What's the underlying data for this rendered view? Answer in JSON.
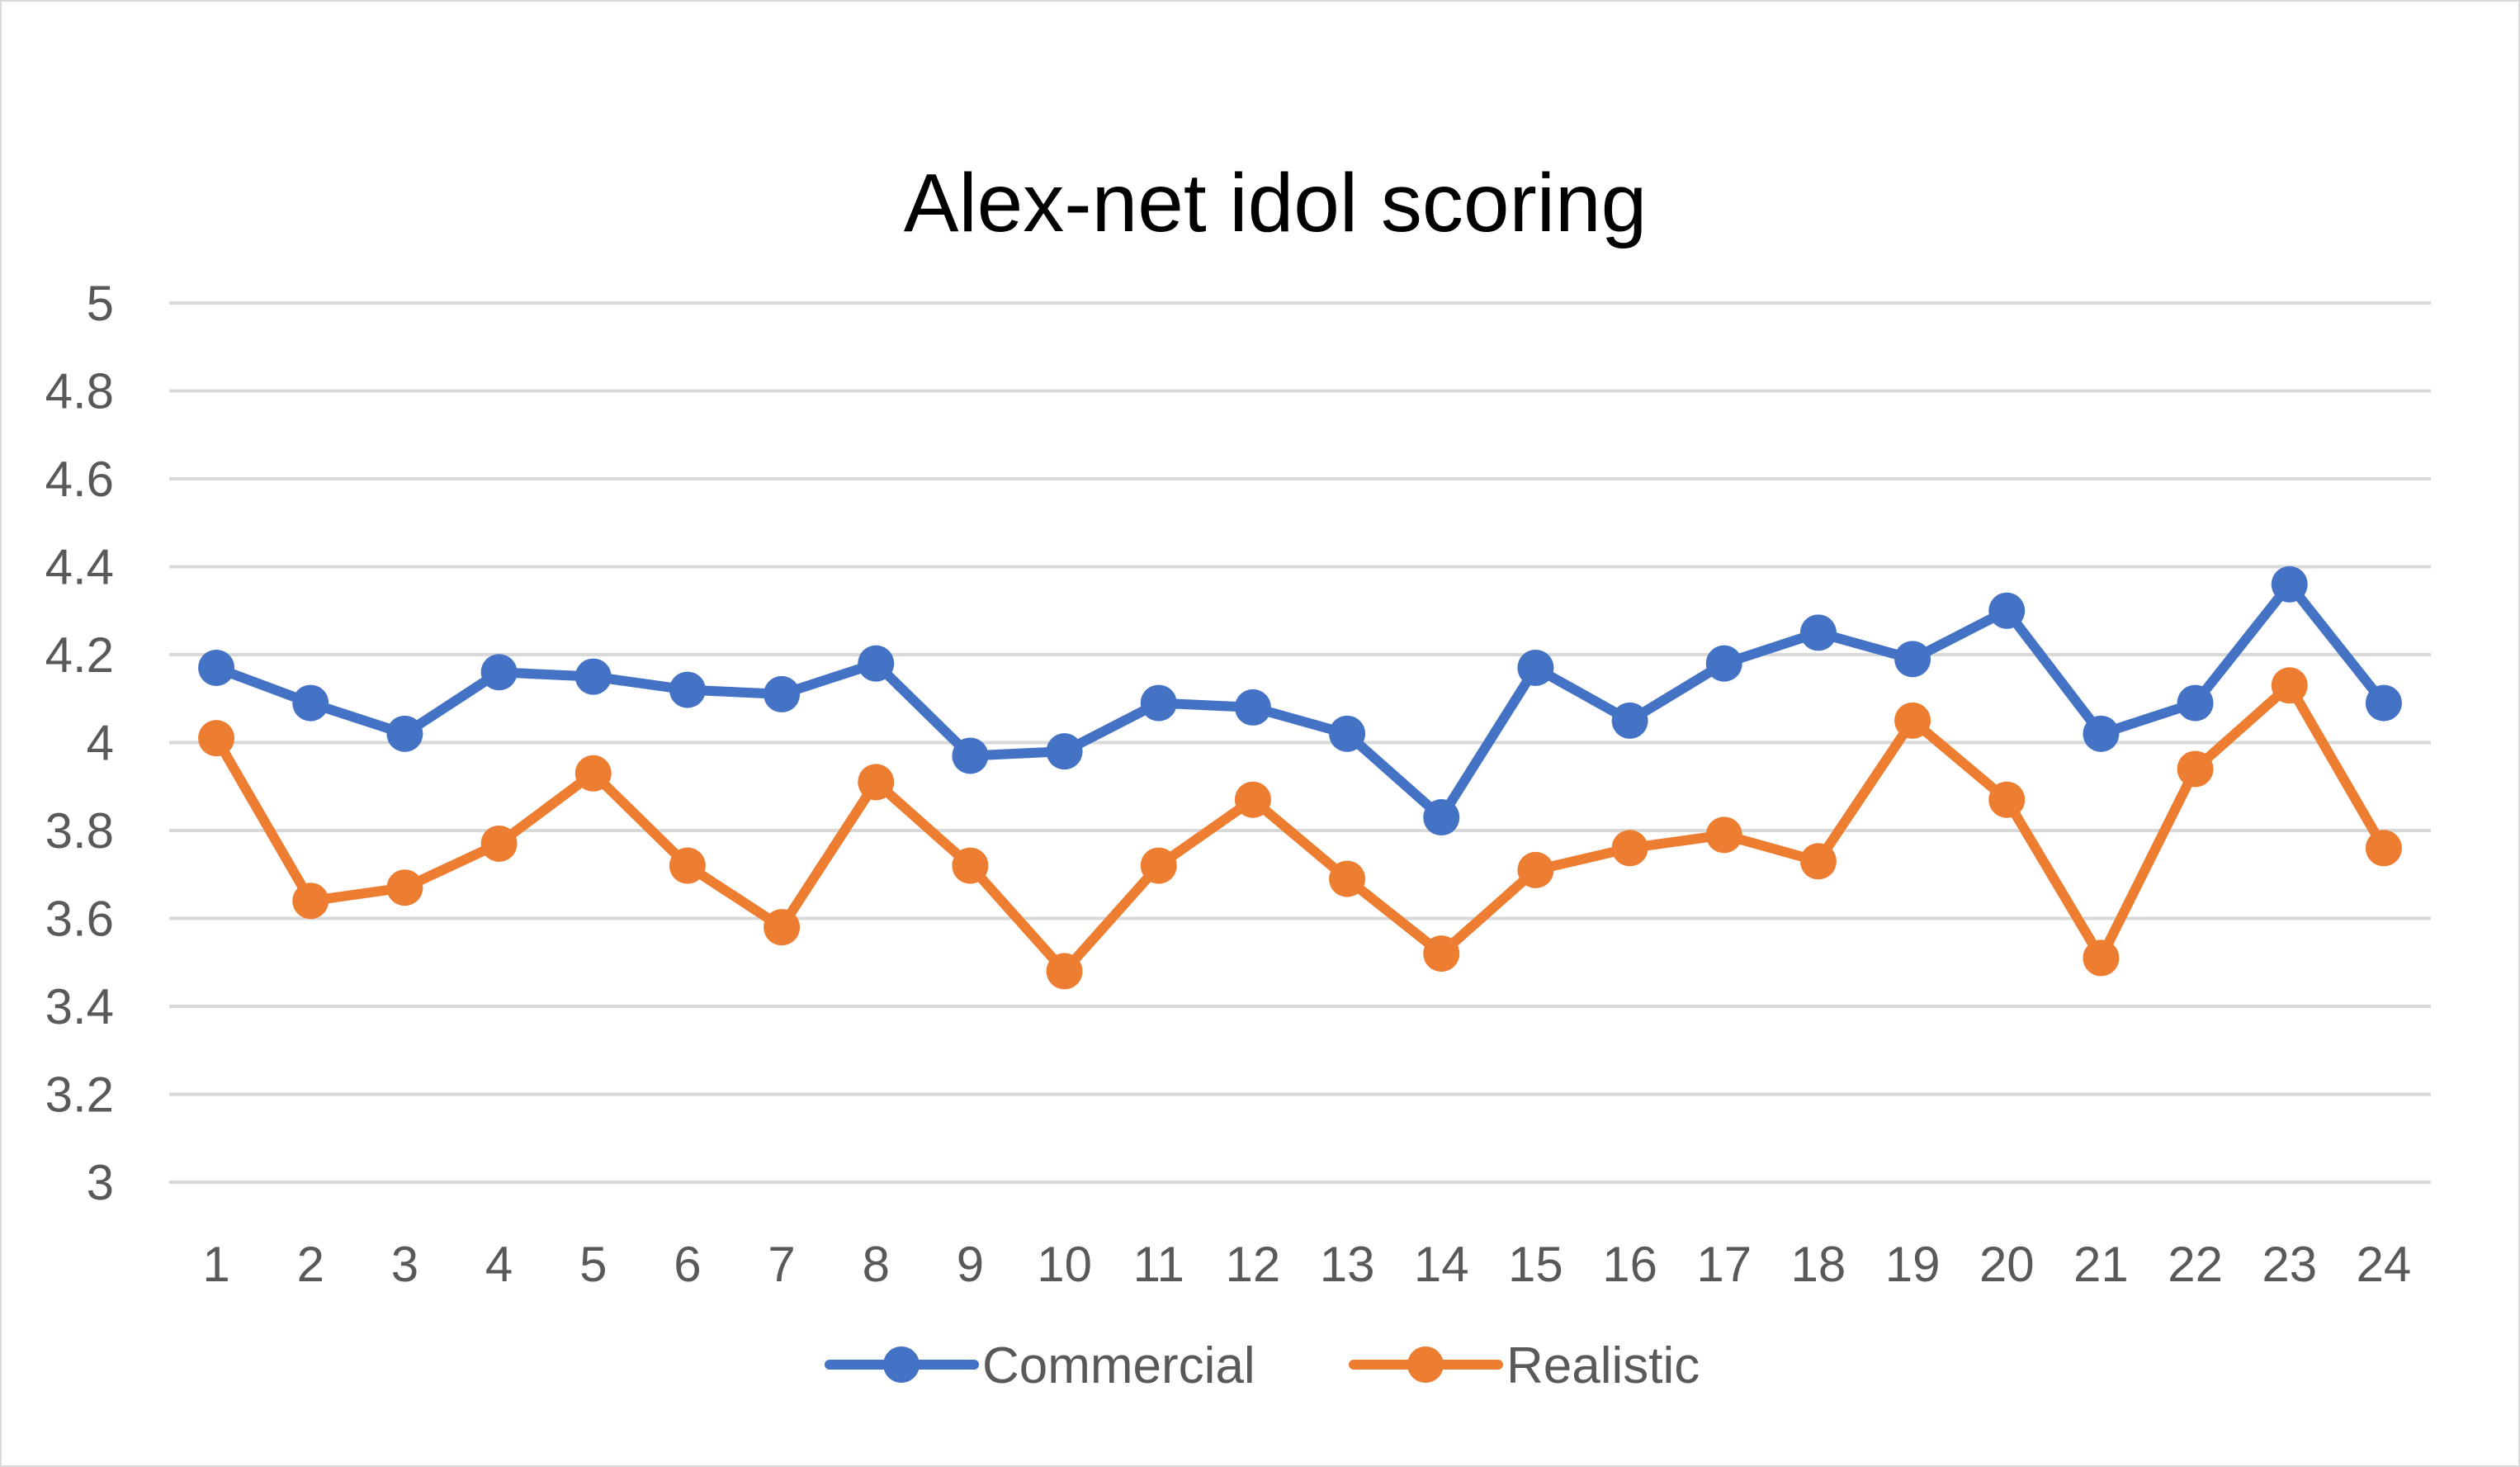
{
  "chart_data": {
    "type": "line",
    "title": "Alex-net idol scoring",
    "xlabel": "",
    "ylabel": "",
    "categories": [
      "1",
      "2",
      "3",
      "4",
      "5",
      "6",
      "7",
      "8",
      "9",
      "10",
      "11",
      "12",
      "13",
      "14",
      "15",
      "16",
      "17",
      "18",
      "19",
      "20",
      "21",
      "22",
      "23",
      "24"
    ],
    "ylim": [
      3,
      5
    ],
    "yticks": [
      3,
      3.2,
      3.4,
      3.6,
      3.8,
      4,
      4.2,
      4.4,
      4.6,
      4.8,
      5
    ],
    "ytick_labels": [
      "3",
      "3.2",
      "3.4",
      "3.6",
      "3.8",
      "4",
      "4.2",
      "4.4",
      "4.6",
      "4.8",
      "5"
    ],
    "grid": true,
    "legend_position": "bottom",
    "series": [
      {
        "name": "Commercial",
        "color": "#4472c4",
        "values": [
          4.17,
          4.09,
          4.02,
          4.16,
          4.15,
          4.12,
          4.11,
          4.18,
          3.97,
          3.98,
          4.09,
          4.08,
          4.02,
          3.83,
          4.17,
          4.05,
          4.18,
          4.25,
          4.19,
          4.3,
          4.02,
          4.09,
          4.36,
          4.09
        ]
      },
      {
        "name": "Realistic",
        "color": "#ed7d31",
        "values": [
          4.01,
          3.64,
          3.67,
          3.77,
          3.93,
          3.72,
          3.58,
          3.91,
          3.72,
          3.48,
          3.72,
          3.87,
          3.69,
          3.52,
          3.71,
          3.76,
          3.79,
          3.73,
          4.05,
          3.87,
          3.51,
          3.94,
          4.13,
          3.76
        ]
      }
    ]
  }
}
